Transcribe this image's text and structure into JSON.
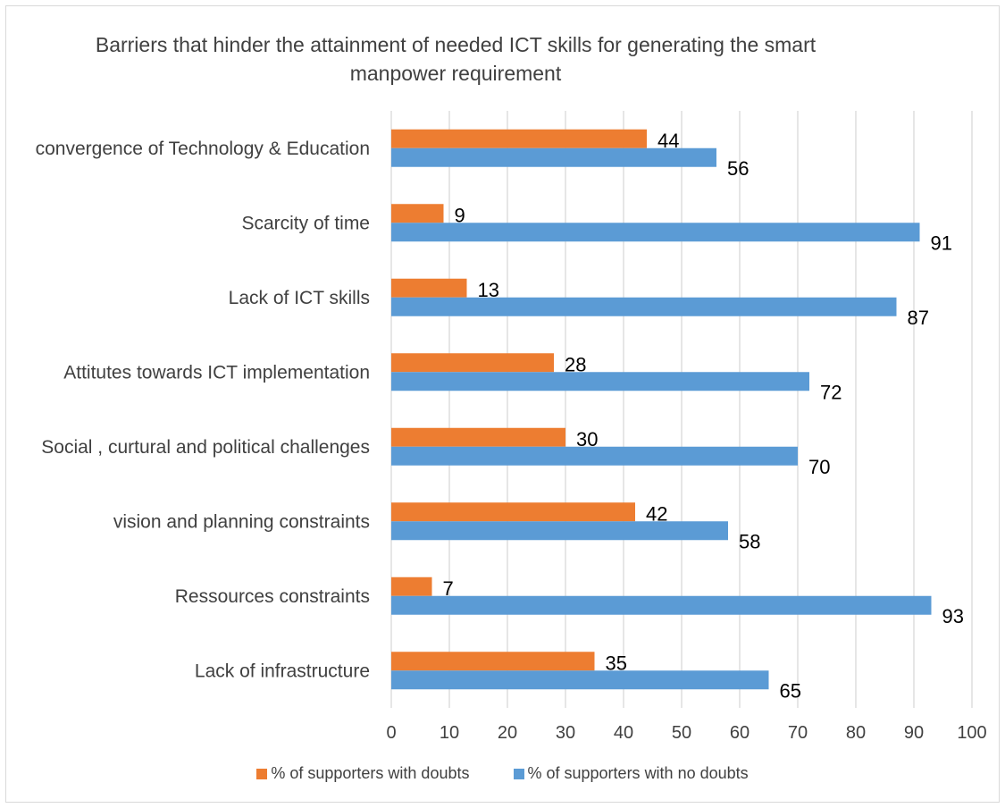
{
  "chart_data": {
    "type": "bar",
    "orientation": "horizontal",
    "title_line1": "Barriers that hinder the attainment of needed ICT skills for generating the smart",
    "title_line2": "manpower requirement",
    "categories": [
      "convergence of Technology & Education",
      "Scarcity of time",
      "Lack of ICT skills",
      "Attitutes towards ICT implementation",
      "Social , curtural and political challenges",
      "vision and planning constraints",
      "Ressources constraints",
      "Lack of infrastructure"
    ],
    "series": [
      {
        "name": "% of  supporters with doubts",
        "color": "#ed7d31",
        "values": [
          44,
          9,
          13,
          28,
          30,
          42,
          7,
          35
        ]
      },
      {
        "name": "% of supporters with no doubts",
        "color": "#5b9bd5",
        "values": [
          56,
          91,
          87,
          72,
          70,
          58,
          93,
          65
        ]
      }
    ],
    "xlim": [
      0,
      100
    ],
    "xticks": [
      "0",
      "10",
      "20",
      "30",
      "40",
      "50",
      "60",
      "70",
      "80",
      "90",
      "100"
    ],
    "grid": true,
    "legend_position": "bottom"
  }
}
